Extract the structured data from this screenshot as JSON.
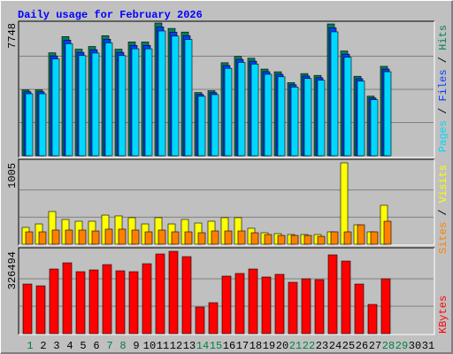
{
  "chart_data": [
    {
      "type": "bar",
      "title": "Daily usage for February 2026",
      "title_color": "#0000ff",
      "legend_separator": " / ",
      "ylim": [
        0,
        7748
      ],
      "yticks": [
        7748
      ],
      "series": [
        {
          "name": "Hits",
          "color": "#00805c",
          "values": [
            3847,
            3847,
            6009,
            6957,
            6220,
            6378,
            7010,
            6220,
            6641,
            6641,
            7748,
            7432,
            7221,
            3690,
            3795,
            5429,
            5798,
            5692,
            5060,
            4902,
            4269,
            4796,
            4691,
            7695,
            6114,
            4638,
            3479,
            5218,
            null,
            null,
            null
          ]
        },
        {
          "name": "Files",
          "color": "#0040ff",
          "values": [
            3732,
            3732,
            5829,
            6748,
            6033,
            6187,
            6800,
            6033,
            6442,
            6442,
            7516,
            7209,
            7004,
            3579,
            3681,
            5266,
            5624,
            5521,
            4908,
            4755,
            4141,
            4652,
            4550,
            7464,
            5931,
            4499,
            3375,
            5061,
            null,
            null,
            null
          ]
        },
        {
          "name": "Pages",
          "color": "#00d8ff",
          "values": [
            3616,
            3616,
            5648,
            6540,
            5847,
            5995,
            6589,
            5847,
            6243,
            6243,
            7283,
            6986,
            6788,
            3469,
            3567,
            5103,
            5450,
            5350,
            4756,
            4608,
            4013,
            4508,
            4410,
            7233,
            5747,
            4360,
            3270,
            4905,
            null,
            null,
            null
          ]
        }
      ]
    },
    {
      "type": "bar",
      "legend_separator": " / ",
      "ylim": [
        0,
        1005
      ],
      "yticks": [
        1005
      ],
      "series": [
        {
          "name": "Visits",
          "color": "#ffff00",
          "values": [
            208,
            251,
            404,
            306,
            284,
            284,
            360,
            350,
            328,
            251,
            328,
            251,
            306,
            262,
            284,
            328,
            328,
            197,
            142,
            131,
            120,
            120,
            120,
            153,
            1005,
            240,
            153,
            481,
            null,
            null,
            null
          ]
        },
        {
          "name": "Sites",
          "color": "#ff8000",
          "values": [
            153,
            153,
            175,
            175,
            175,
            164,
            186,
            186,
            175,
            153,
            175,
            153,
            153,
            142,
            164,
            164,
            164,
            142,
            120,
            109,
            109,
            109,
            98,
            153,
            153,
            240,
            153,
            284,
            null,
            null,
            null
          ]
        }
      ]
    },
    {
      "type": "bar",
      "ylim": [
        0,
        326494
      ],
      "yticks": [
        326494
      ],
      "categories": [
        "1",
        "2",
        "3",
        "4",
        "5",
        "6",
        "7",
        "8",
        "9",
        "10",
        "11",
        "12",
        "13",
        "14",
        "15",
        "16",
        "17",
        "18",
        "19",
        "20",
        "21",
        "22",
        "23",
        "24",
        "25",
        "26",
        "27",
        "28",
        "29",
        "30",
        "31"
      ],
      "category_colors": [
        "#008040",
        "#000000",
        "#000000",
        "#000000",
        "#000000",
        "#000000",
        "#008040",
        "#008040",
        "#000000",
        "#000000",
        "#000000",
        "#000000",
        "#000000",
        "#008040",
        "#008040",
        "#000000",
        "#000000",
        "#000000",
        "#000000",
        "#000000",
        "#008040",
        "#008040",
        "#000000",
        "#000000",
        "#000000",
        "#000000",
        "#000000",
        "#008040",
        "#008040",
        "#000000",
        "#000000"
      ],
      "series": [
        {
          "name": "KBytes",
          "color": "#ff0000",
          "values": [
            196600,
            189580,
            256280,
            280860,
            245750,
            252770,
            273840,
            249260,
            245750,
            277350,
            315960,
            326494,
            305430,
            105320,
            122870,
            228200,
            238730,
            256280,
            224690,
            235220,
            203620,
            217660,
            214150,
            312450,
            287880,
            196600,
            115850,
            217660,
            null,
            null,
            null
          ]
        }
      ]
    }
  ]
}
